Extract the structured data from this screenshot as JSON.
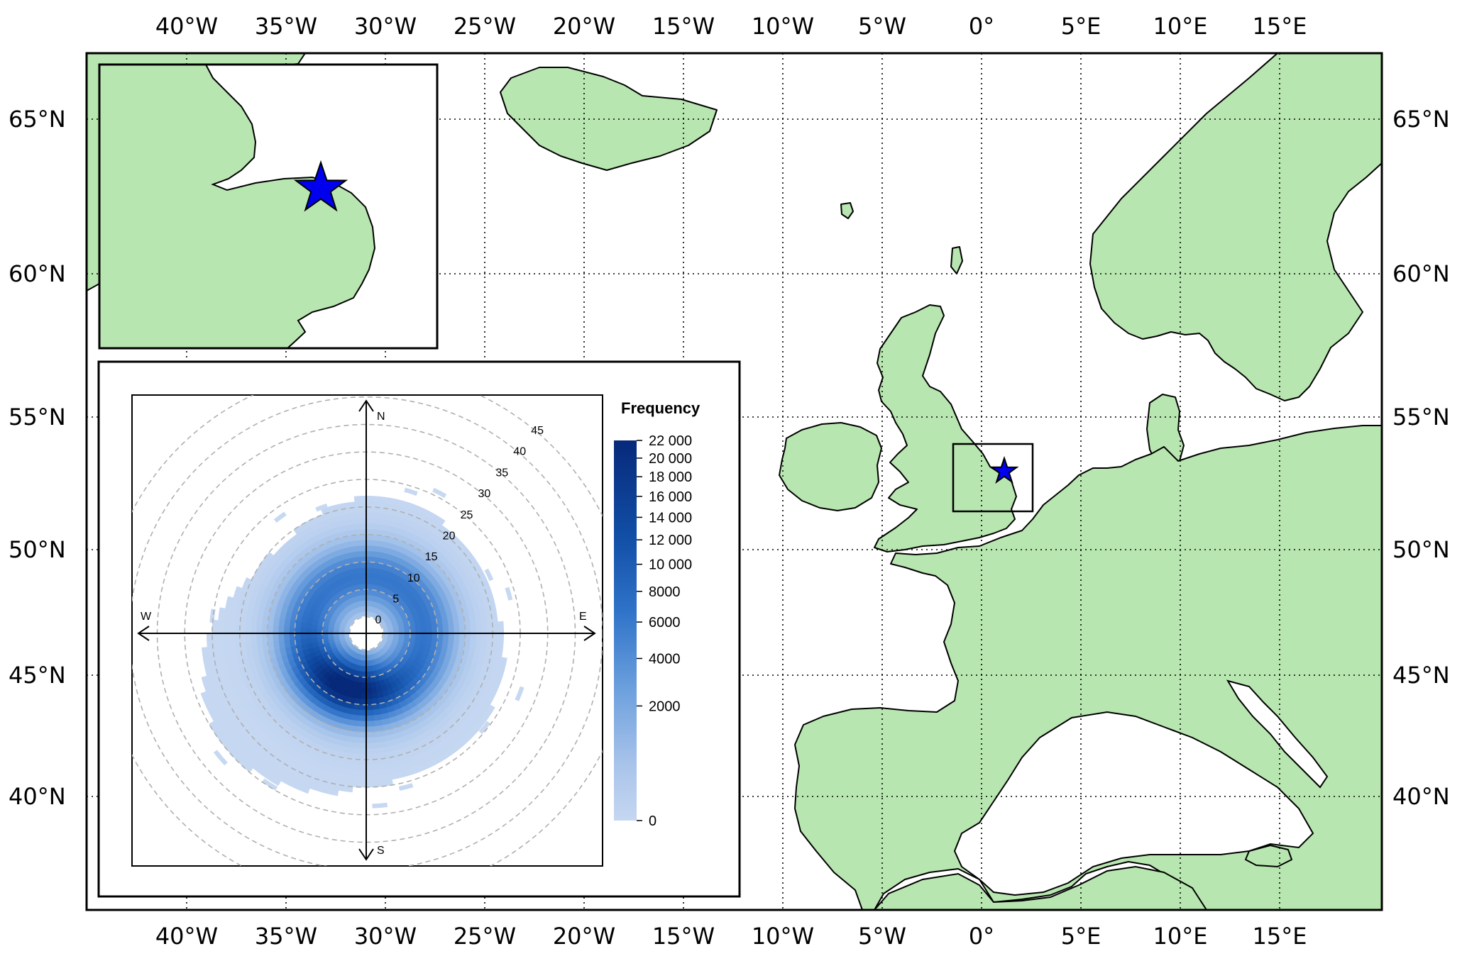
{
  "map": {
    "top_longitude_labels": [
      "40°W",
      "35°W",
      "30°W",
      "25°W",
      "20°W",
      "15°W",
      "10°W",
      "5°W",
      "0°",
      "5°E",
      "10°E",
      "15°E"
    ],
    "bottom_longitude_labels": [
      "40°W",
      "35°W",
      "30°W",
      "25°W",
      "20°W",
      "15°W",
      "10°W",
      "5°W",
      "0°",
      "5°E",
      "10°E",
      "15°E"
    ],
    "left_latitude_labels": [
      "65°N",
      "60°N",
      "55°N",
      "50°N",
      "45°N",
      "40°N"
    ],
    "right_latitude_labels": [
      "65°N",
      "60°N",
      "55°N",
      "50°N",
      "45°N",
      "40°N"
    ],
    "land_color": "#b8e6b0",
    "sea_color": "#ffffff",
    "site_marker": {
      "shape": "star-icon",
      "color": "#0000ee",
      "lon": 1.3,
      "lat": 52.9
    }
  },
  "chart_data": {
    "type": "heatmap",
    "subtype": "polar-frequency",
    "directions": [
      "N",
      "E",
      "S",
      "W"
    ],
    "radial_labels": [
      "0",
      "5",
      "10",
      "15",
      "20",
      "25",
      "30",
      "35",
      "40",
      "45"
    ],
    "legend": {
      "title": "Frequency",
      "labels": [
        "22 000",
        "20 000",
        "18 000",
        "16 000",
        "14 000",
        "12 000",
        "10 000",
        "8000",
        "6000",
        "4000",
        "2000",
        "0"
      ],
      "values": [
        22000,
        20000,
        18000,
        16000,
        14000,
        12000,
        10000,
        8000,
        6000,
        4000,
        2000,
        0
      ],
      "color_low": "#b9d0ee",
      "color_high": "#08277a"
    }
  }
}
